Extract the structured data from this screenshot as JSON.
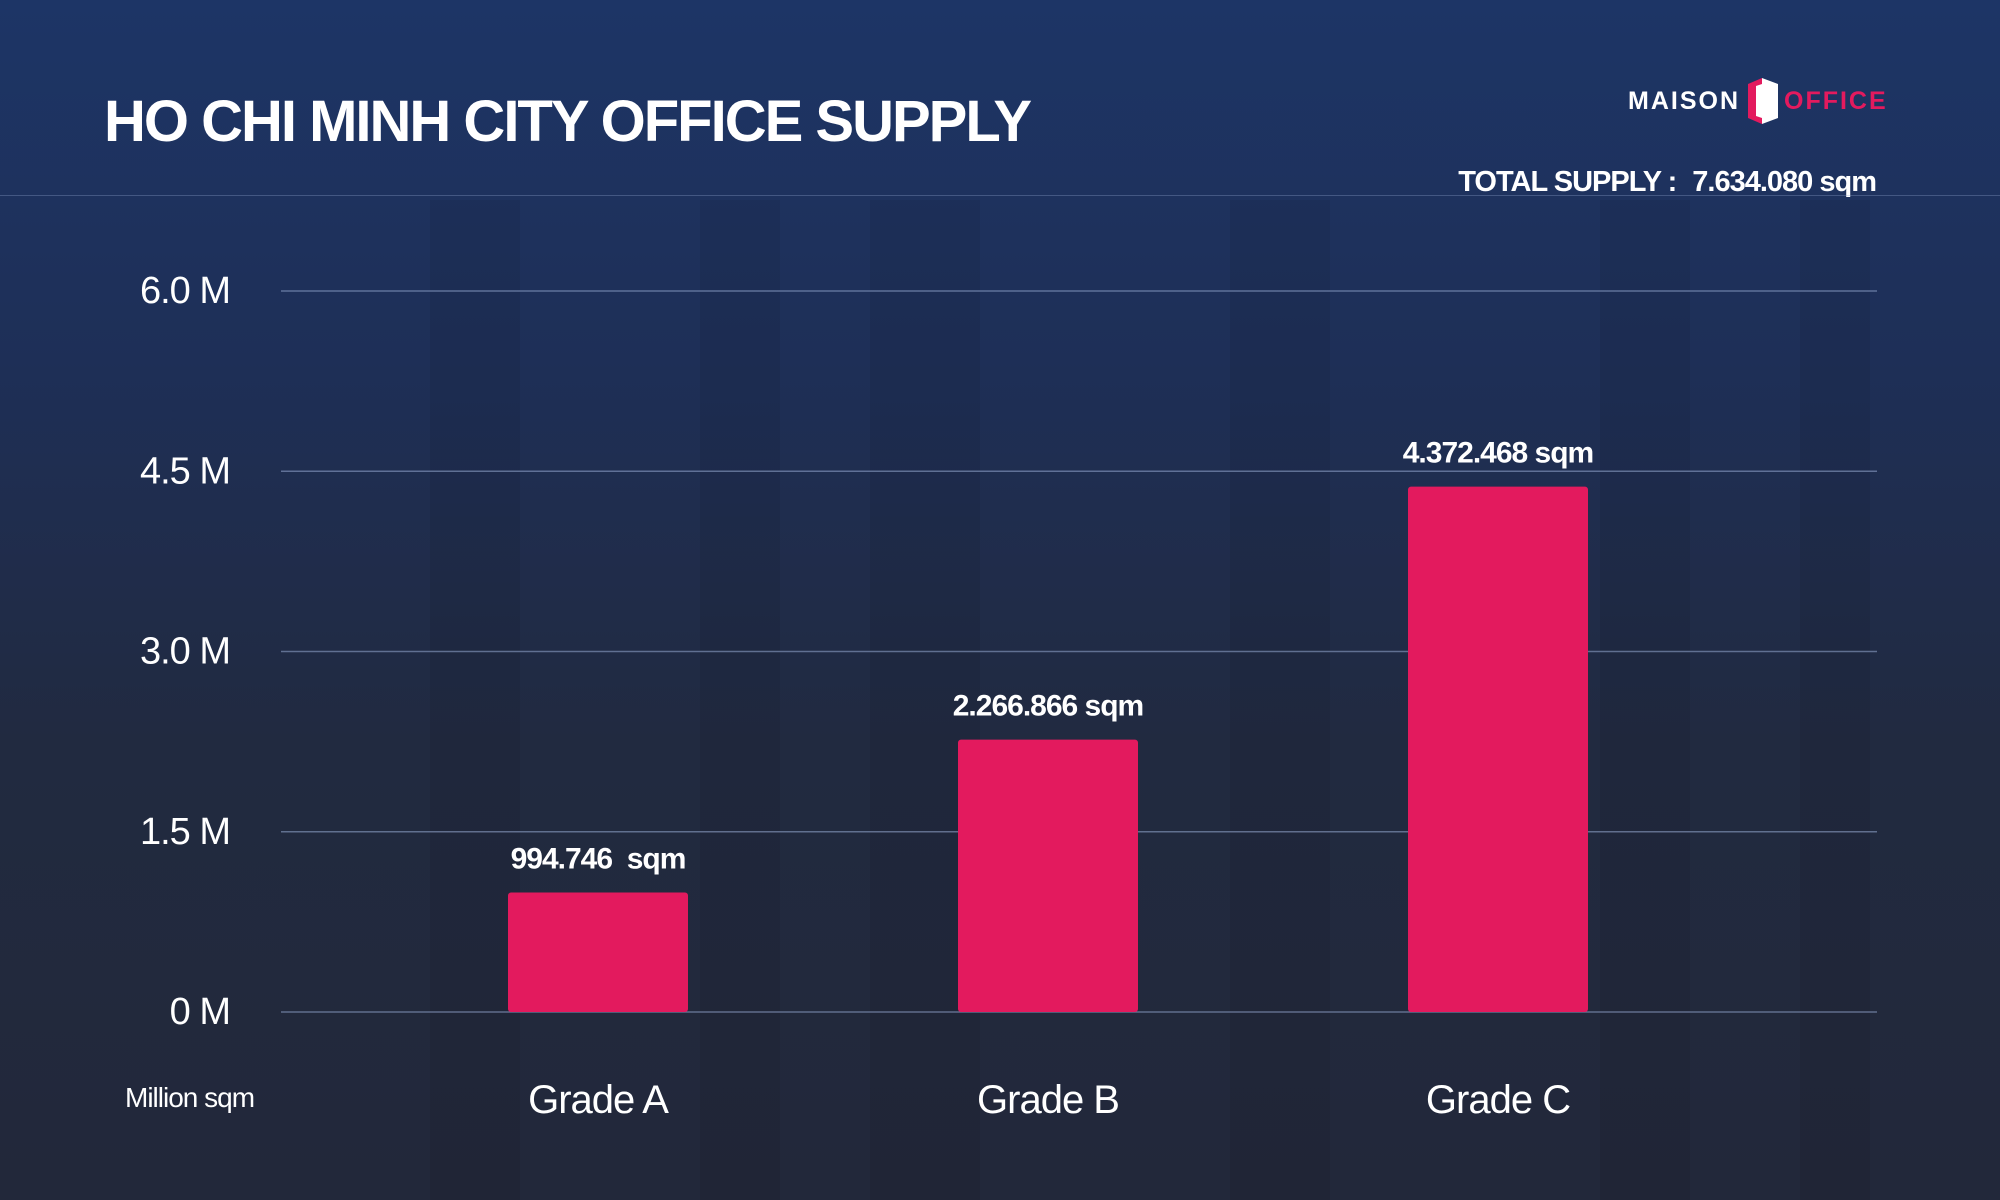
{
  "header": {
    "title": "HO CHI MINH CITY OFFICE SUPPLY",
    "total_label": "TOTAL SUPPLY :",
    "total_value": "7.634.080 sqm"
  },
  "logo": {
    "word_left": "MAISON",
    "word_right": "OFFICE",
    "icon": "door-icon"
  },
  "colors": {
    "bar": "#e31a5e",
    "background_top": "#1d3566",
    "background_bottom": "#22283a",
    "text": "#ffffff"
  },
  "chart_data": {
    "type": "bar",
    "title": "HO CHI MINH CITY OFFICE SUPPLY",
    "categories": [
      "Grade A",
      "Grade B",
      "Grade C"
    ],
    "values": [
      994746,
      2266866,
      4372468
    ],
    "data_labels": [
      "994.746  sqm",
      "2.266.866 sqm",
      "4.372.468 sqm"
    ],
    "ylabel": "Million sqm",
    "ylim": [
      0,
      6000000
    ],
    "yticks": [
      0,
      1500000,
      3000000,
      4500000,
      6000000
    ],
    "ytick_labels": [
      "0 M",
      "1.5 M",
      "3.0 M",
      "4.5 M",
      "6.0 M"
    ],
    "grid": true,
    "legend": "none"
  }
}
